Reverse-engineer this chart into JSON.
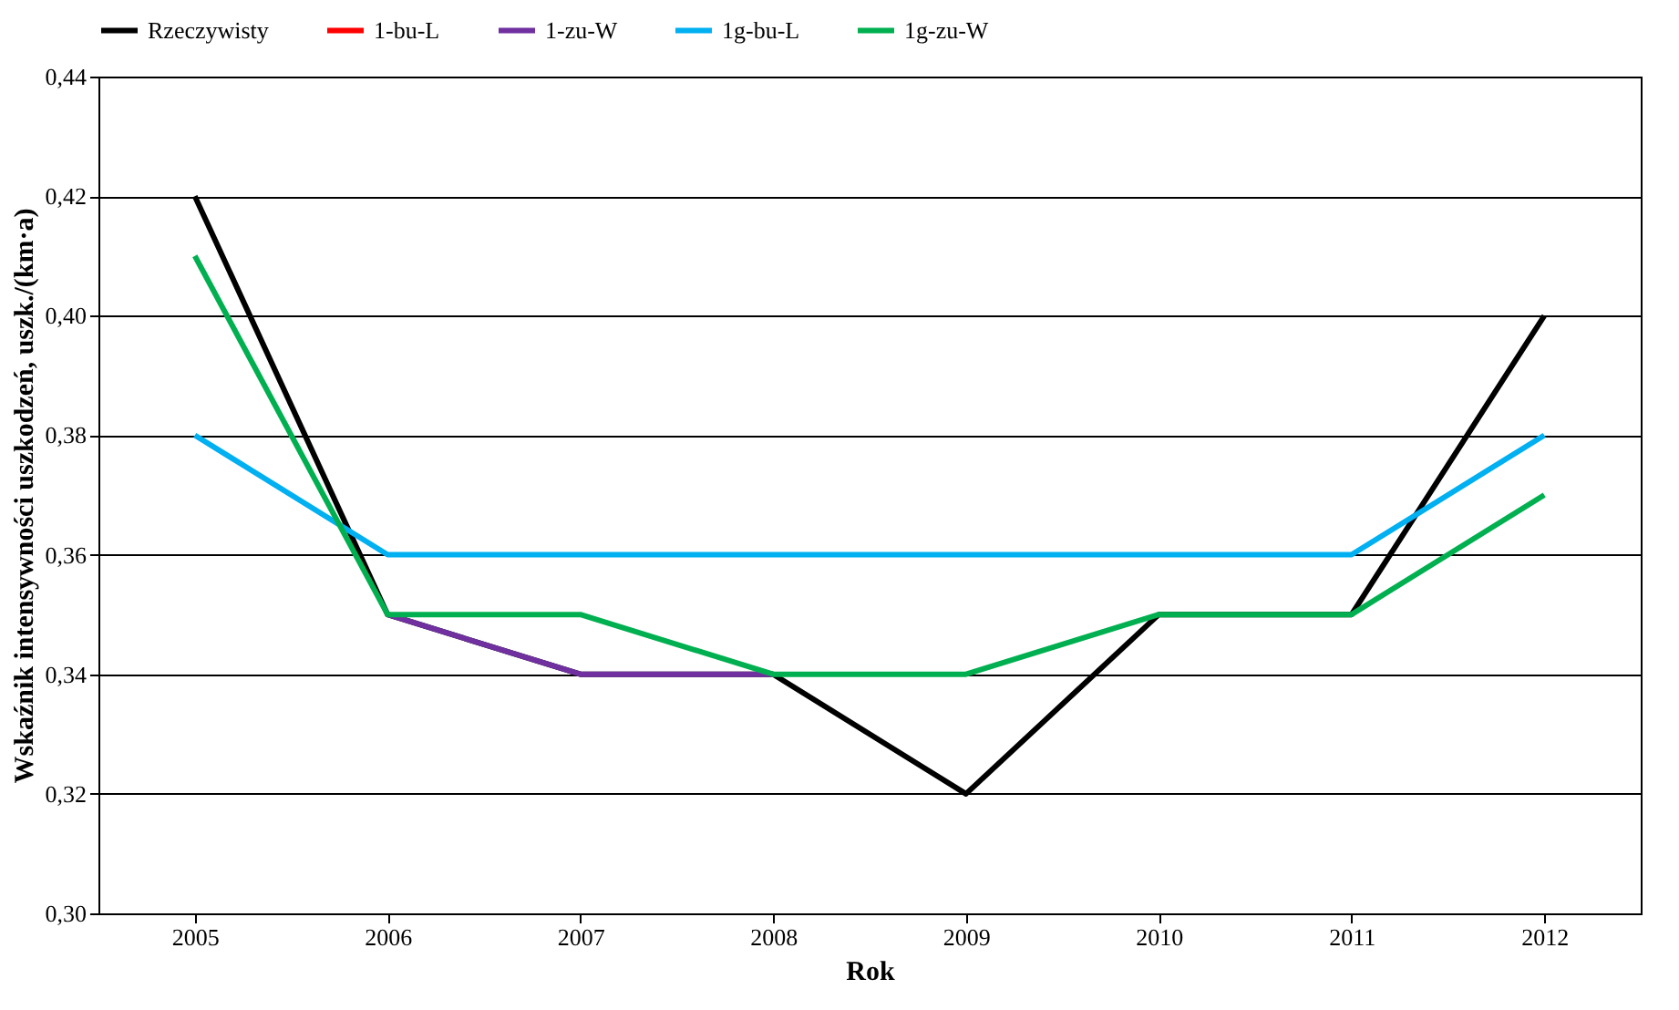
{
  "chart_data": {
    "type": "line",
    "xlabel": "Rok",
    "ylabel": "Wskaźnik intensywności uszkodzeń, uszk./(km·a)",
    "categories": [
      "2005",
      "2006",
      "2007",
      "2008",
      "2009",
      "2010",
      "2011",
      "2012"
    ],
    "series": [
      {
        "name": "Rzeczywisty",
        "color": "#000000",
        "values": [
          0.42,
          0.35,
          0.34,
          0.34,
          0.32,
          0.35,
          0.35,
          0.4
        ]
      },
      {
        "name": "1-bu-L",
        "color": "#ff0000",
        "values": [
          null,
          null,
          null,
          null,
          null,
          null,
          null,
          null
        ]
      },
      {
        "name": "1-zu-W",
        "color": "#7030a0",
        "values": [
          null,
          0.35,
          0.34,
          0.34,
          null,
          null,
          null,
          null
        ]
      },
      {
        "name": "1g-bu-L",
        "color": "#00b0f0",
        "values": [
          0.38,
          0.36,
          0.36,
          0.36,
          0.36,
          0.36,
          0.36,
          0.38
        ]
      },
      {
        "name": "1g-zu-W",
        "color": "#00b050",
        "values": [
          0.41,
          0.35,
          0.35,
          0.34,
          0.34,
          0.35,
          0.35,
          0.37
        ]
      }
    ],
    "ylim": [
      0.3,
      0.44
    ],
    "yticks": [
      {
        "value": 0.3,
        "label": "0,30"
      },
      {
        "value": 0.32,
        "label": "0,32"
      },
      {
        "value": 0.34,
        "label": "0,34"
      },
      {
        "value": 0.36,
        "label": "0,36"
      },
      {
        "value": 0.38,
        "label": "0,38"
      },
      {
        "value": 0.4,
        "label": "0,40"
      },
      {
        "value": 0.42,
        "label": "0,42"
      },
      {
        "value": 0.44,
        "label": "0,44"
      }
    ],
    "grid": "y",
    "legend": "top",
    "marker": "none",
    "line_style": "solid"
  }
}
